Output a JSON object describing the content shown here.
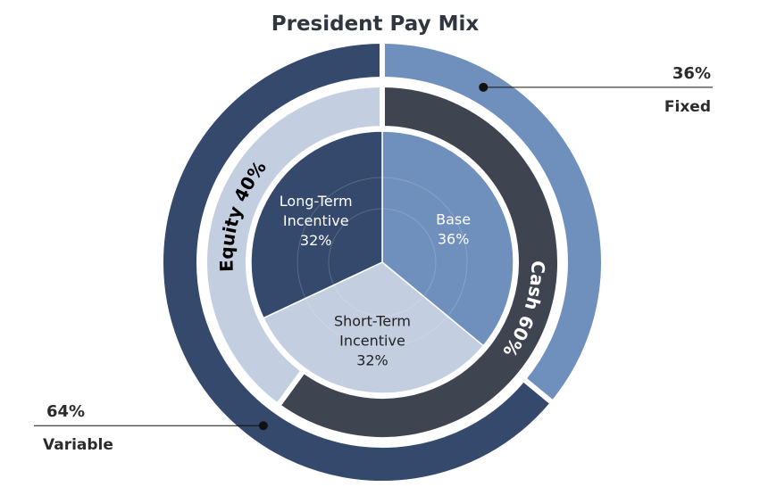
{
  "chart_data": {
    "type": "pie",
    "title": "President Pay Mix",
    "rings": [
      {
        "ring": "outer",
        "slices": [
          {
            "name": "Fixed",
            "value": 36,
            "label": "36%",
            "color": "#6f8fbc"
          },
          {
            "name": "Variable",
            "value": 64,
            "label": "64%",
            "color": "#34496b"
          }
        ]
      },
      {
        "ring": "middle",
        "slices": [
          {
            "name": "Cash",
            "value": 60,
            "label": "Cash 60%",
            "color": "#3f4550",
            "text_color": "#ffffff"
          },
          {
            "name": "Equity",
            "value": 40,
            "label": "Equity 40%",
            "color": "#c3cee1",
            "text_color": "#000000"
          }
        ]
      },
      {
        "ring": "inner",
        "slices": [
          {
            "name": "Base",
            "value": 36,
            "lines": [
              "Base",
              "36%"
            ],
            "color": "#6f8fbc",
            "text_color": "#ffffff"
          },
          {
            "name": "Short-Term Incentive",
            "value": 32,
            "lines": [
              "Short-Term",
              "Incentive",
              "32%"
            ],
            "color": "#c3cee1",
            "text_color": "#222222"
          },
          {
            "name": "Long-Term Incentive",
            "value": 32,
            "lines": [
              "Long-Term",
              "Incentive",
              "32%"
            ],
            "color": "#34496b",
            "text_color": "#ffffff"
          }
        ]
      }
    ],
    "start_angle_deg": 0,
    "direction": "clockwise",
    "background_ring_color": "#ffffff"
  }
}
